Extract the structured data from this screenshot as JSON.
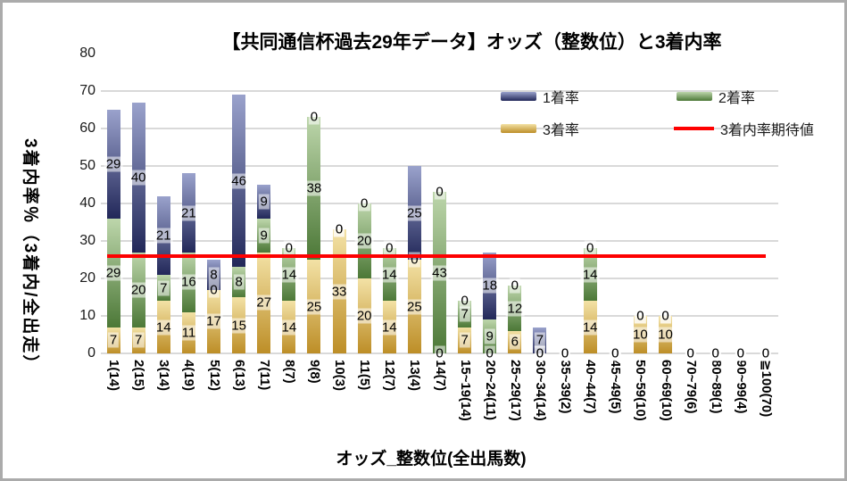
{
  "frame": {
    "border_color": "#ababab",
    "background": "#ffffff"
  },
  "chart_data": {
    "type": "bar",
    "stacked": true,
    "title": "【共同通信杯過去29年データ】オッズ（整数位）と3着内率",
    "xlabel": "オッズ_整数位(全出馬数)",
    "ylabel": "3着内率％（3着内/全出走）",
    "ylim": [
      0,
      80
    ],
    "yticks": [
      0,
      10,
      20,
      30,
      40,
      50,
      60,
      70,
      80
    ],
    "grid": true,
    "gridline_color": "#d9d9d9",
    "legend_position": "top-right",
    "categories": [
      "1(14)",
      "2(15)",
      "3(14)",
      "4(19)",
      "5(12)",
      "6(13)",
      "7(11)",
      "8(7)",
      "9(8)",
      "10(3)",
      "11(5)",
      "12(7)",
      "13(4)",
      "14(7)",
      "15~19(14)",
      "20~24(11)",
      "25~29(17)",
      "30~34(14)",
      "35~39(2)",
      "40~44(7)",
      "45~49(5)",
      "50~59(10)",
      "60~69(10)",
      "70~79(6)",
      "80~89(1)",
      "90~99(4)",
      "≧100(70)"
    ],
    "series": [
      {
        "name": "3着率",
        "color_light": "#f3e2a6",
        "color_dark": "#bd8e27",
        "values": [
          7,
          7,
          14,
          11,
          17,
          15,
          27,
          14,
          25,
          33,
          20,
          14,
          25,
          0,
          7,
          0,
          6,
          0,
          0,
          14,
          0,
          10,
          10,
          0,
          0,
          0,
          0
        ]
      },
      {
        "name": "2着率",
        "color_light": "#bdd6ab",
        "color_dark": "#4c7837",
        "values": [
          29,
          20,
          7,
          16,
          0,
          8,
          9,
          14,
          38,
          0,
          20,
          14,
          0,
          43,
          7,
          9,
          12,
          0,
          0,
          14,
          0,
          0,
          0,
          0,
          0,
          0,
          0
        ]
      },
      {
        "name": "1着率",
        "color_light": "#9aa2cc",
        "color_dark": "#222859",
        "values": [
          29,
          40,
          21,
          21,
          8,
          46,
          9,
          0,
          0,
          0,
          0,
          0,
          25,
          0,
          0,
          18,
          0,
          7,
          0,
          0,
          0,
          0,
          0,
          0,
          0,
          0,
          0
        ]
      }
    ],
    "expected_line": {
      "name": "3着内率期待値",
      "value": 26,
      "color": "#fe0000"
    }
  }
}
